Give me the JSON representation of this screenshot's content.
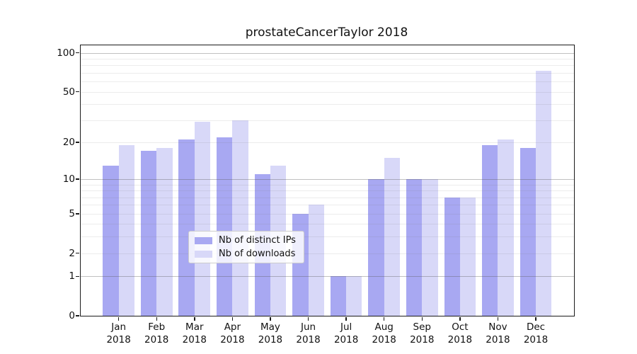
{
  "title": "prostateCancerTaylor 2018",
  "legend": {
    "items": [
      {
        "label": "Nb of distinct IPs",
        "color": "#a8a8f2"
      },
      {
        "label": "Nb of downloads",
        "color": "#d8d8f8"
      }
    ],
    "position": "lower center"
  },
  "chart_data": {
    "type": "bar",
    "title": "prostateCancerTaylor 2018",
    "categories": [
      "Jan 2018",
      "Feb 2018",
      "Mar 2018",
      "Apr 2018",
      "May 2018",
      "Jun 2018",
      "Jul 2018",
      "Aug 2018",
      "Sep 2018",
      "Oct 2018",
      "Nov 2018",
      "Dec 2018"
    ],
    "series": [
      {
        "name": "Nb of distinct IPs",
        "color": "#a8a8f2",
        "values": [
          13,
          17,
          21,
          22,
          11,
          5,
          1,
          10,
          10,
          7,
          19,
          18
        ]
      },
      {
        "name": "Nb of downloads",
        "color": "#d8d8f8",
        "values": [
          19,
          18,
          29,
          30,
          13,
          6,
          1,
          15,
          10,
          7,
          21,
          73
        ]
      }
    ],
    "xlabel": "",
    "ylabel": "",
    "yscale": "log10(1+x)",
    "ylim": [
      0,
      113
    ],
    "yticks_labeled": [
      0,
      1,
      2,
      5,
      10,
      20,
      50,
      100
    ],
    "yticks_major_grid": [
      1,
      10,
      100
    ],
    "yticks_minor_grid": [
      2,
      3,
      4,
      5,
      6,
      7,
      8,
      9,
      20,
      30,
      40,
      50,
      60,
      70,
      80,
      90
    ],
    "grid": true,
    "legend_position": "lower center"
  }
}
